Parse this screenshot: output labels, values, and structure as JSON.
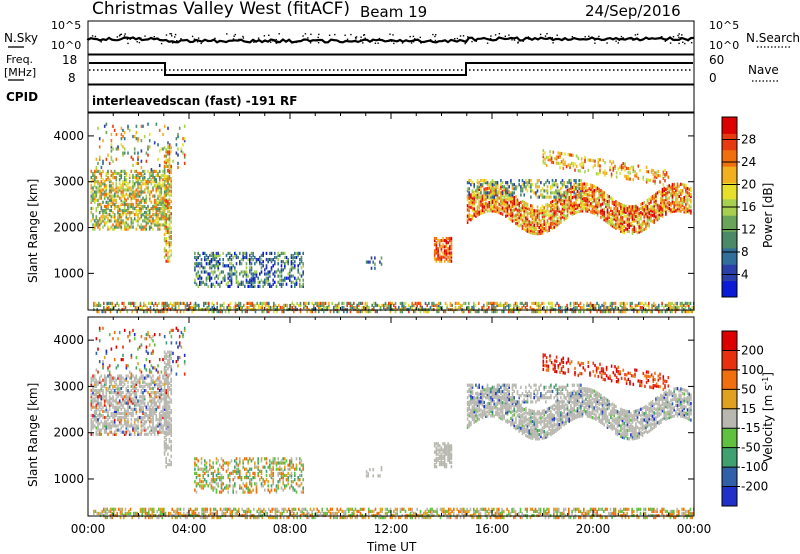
{
  "header": {
    "station": "Christmas Valley West (fitACF)",
    "beam": "Beam 19",
    "date": "24/Sep/2016"
  },
  "sky_panel": {
    "left_label": "N.Sky",
    "left_ticks": [
      "10^5",
      "10^0"
    ],
    "right_label": "N.Search",
    "right_ticks": [
      "10^5",
      "10^0"
    ],
    "right_legend_line": "dotted"
  },
  "freq_panel": {
    "left_label_1": "Freq.",
    "left_label_2": "[MHz]",
    "left_ticks": [
      "18",
      "8"
    ],
    "right_label": "Nave",
    "right_ticks": [
      "60",
      "0"
    ],
    "right_legend_line": "dotted"
  },
  "cpid": {
    "label": "CPID",
    "value": "interleavedscan (fast) -191 RF"
  },
  "chart_data": [
    {
      "type": "heatmap",
      "title": "Power",
      "xlabel": "",
      "ylabel": "Slant Range [km]",
      "ylim": [
        200,
        4500
      ],
      "xlim": [
        "00:00",
        "24:00"
      ],
      "yticks": [
        "1000",
        "2000",
        "3000",
        "4000"
      ],
      "colorbar": {
        "label": "Power [dB]",
        "ticks": [
          "28",
          "24",
          "20",
          "16",
          "12",
          "8",
          "4"
        ],
        "colors": [
          "#0a1ad6",
          "#2a3fa8",
          "#2f6f9a",
          "#4a8a68",
          "#6aa35a",
          "#a8d050",
          "#e6e02a",
          "#f0b020",
          "#f07010",
          "#e83a10",
          "#dd0000"
        ]
      }
    },
    {
      "type": "heatmap",
      "title": "Velocity",
      "xlabel": "Time UT",
      "ylabel": "Slant Range [km]",
      "ylim": [
        200,
        4500
      ],
      "xlim": [
        "00:00",
        "24:00"
      ],
      "yticks": [
        "1000",
        "2000",
        "3000",
        "4000"
      ],
      "xticks": [
        "00:00",
        "04:00",
        "08:00",
        "12:00",
        "16:00",
        "20:00",
        "00:00"
      ],
      "colorbar": {
        "label_main": "Velocity [m s",
        "label_sup": "-1",
        "label_end": "]",
        "ticks": [
          "200",
          "100",
          "50",
          "15",
          "-15",
          "-50",
          "-100",
          "-200"
        ],
        "colors": [
          "#2030c8",
          "#3060a8",
          "#40a070",
          "#60c040",
          "#b8b8b0",
          "#e0a020",
          "#f07010",
          "#e83010",
          "#dd0000"
        ]
      }
    }
  ]
}
